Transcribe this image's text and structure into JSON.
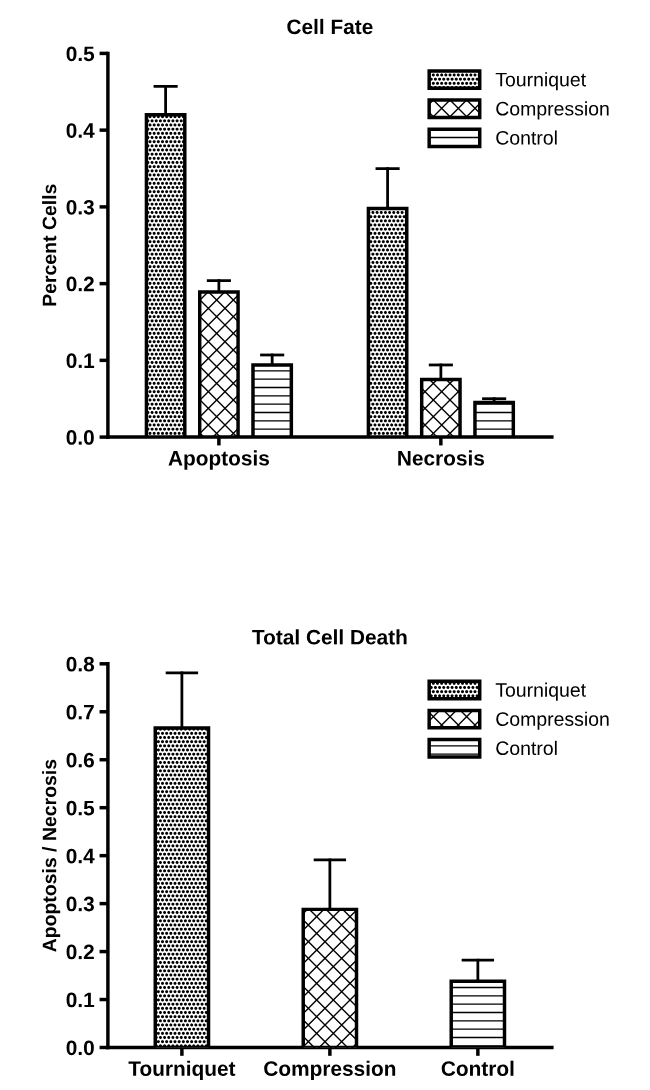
{
  "chart_data": [
    {
      "type": "bar",
      "title": "Cell Fate",
      "ylabel": "Percent Cells",
      "categories": [
        "Apoptosis",
        "Necrosis"
      ],
      "ylim": [
        0,
        0.5
      ],
      "yticks": [
        {
          "value": 0,
          "label": "0.0"
        },
        0.1,
        0.2,
        0.3,
        0.4,
        0.5
      ],
      "grid": false,
      "legend": "top right",
      "series": [
        {
          "name": "Tourniquet",
          "color": "#000000",
          "values": [
            0.42,
            0.298
          ],
          "errors": [
            [
              0.42,
              0.457
            ],
            [
              0.298,
              0.35
            ]
          ]
        },
        {
          "name": "Compression",
          "color": "#000000",
          "values": [
            0.189,
            0.075
          ],
          "errors": [
            [
              0.189,
              0.204
            ],
            [
              0.075,
              0.094
            ]
          ]
        },
        {
          "name": "Control",
          "color": "#000000",
          "values": [
            0.094,
            0.045
          ],
          "errors": [
            [
              0.094,
              0.107
            ],
            [
              0.045,
              0.05
            ]
          ]
        }
      ]
    },
    {
      "type": "bar",
      "title": "Total Cell Death",
      "ylabel": "Apoptosis / Necrosis",
      "categories": [
        "Tourniquet",
        "Compression",
        "Control"
      ],
      "ylim": [
        0,
        0.8
      ],
      "yticks": [
        {
          "value": 0,
          "label": "0.0"
        },
        0.1,
        0.2,
        0.3,
        0.4,
        0.5,
        0.6,
        0.7,
        0.8
      ],
      "grid": false,
      "legend": "top right",
      "series": [
        {
          "name": "Tourniquet",
          "color": "#000000",
          "values": [
            0.666,
            null,
            null
          ],
          "errors": [
            [
              0.666,
              0.781
            ],
            null,
            null
          ]
        },
        {
          "name": "Compression",
          "color": "#000000",
          "values": [
            null,
            0.288,
            null
          ],
          "errors": [
            null,
            [
              0.288,
              0.391
            ],
            null
          ]
        },
        {
          "name": "Control",
          "color": "#000000",
          "values": [
            null,
            null,
            0.138
          ],
          "errors": [
            null,
            null,
            [
              0.138,
              0.182
            ]
          ]
        }
      ]
    }
  ]
}
